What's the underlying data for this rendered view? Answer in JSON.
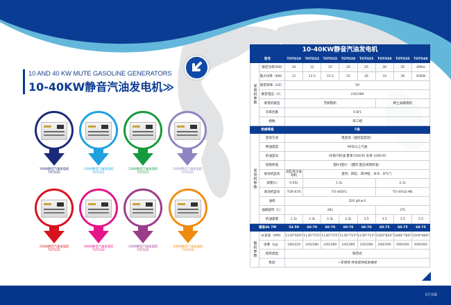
{
  "heading": {
    "english": "10 AND 40 KW MUTE GASOLINE GENERATORS",
    "chinese": "10-40KW静音汽油发电机",
    "chevron": "≫"
  },
  "badge_icon": "arrow-down-left-icon",
  "colors": {
    "brand_blue": "#0b3c93",
    "light_blue": "#5fb6d8"
  },
  "products": [
    {
      "name": "10KW静音汽油发电机",
      "model": "TOTO10",
      "color": "#1b2a78"
    },
    {
      "name": "12KW静音汽油发电机",
      "model": "TOTO12",
      "color": "#1fa0e0"
    },
    {
      "name": "15KW静音汽油发电机",
      "model": "TOTO15",
      "color": "#159a3c"
    },
    {
      "name": "20KW静音汽油发电机",
      "model": "TOTO20",
      "color": "#8d86c0"
    },
    {
      "name": "25KW静音汽油发电机",
      "model": "TOTO25",
      "color": "#d8121e"
    },
    {
      "name": "30KW静音汽油发电机",
      "model": "TOTO30",
      "color": "#e5148a"
    },
    {
      "name": "35KW静音汽油发电机",
      "model": "TOTO35",
      "color": "#9b3c8c"
    },
    {
      "name": "40KW静音汽油发电机",
      "model": "TOTO40",
      "color": "#f08a10"
    }
  ],
  "spec_table": {
    "title": "10-40KW静音汽油发电机",
    "header_label": "型号",
    "models": [
      "TOTO10",
      "TOTO12",
      "TOTO15",
      "TOTO20",
      "TOTO25",
      "TOTO30",
      "TOTO35",
      "TOTO40"
    ],
    "sections": [
      {
        "name": "发电机参数",
        "rows": [
          {
            "label": "额定功率(KW)",
            "values": [
              "10",
              "12",
              "15",
              "20",
              "25",
              "30",
              "35",
              "40Kw"
            ]
          },
          {
            "label": "最大功率（KW）",
            "values": [
              "11",
              "13.5",
              "15.5",
              "22",
              "26",
              "33",
              "36",
              "45KW"
            ]
          },
          {
            "label": "额定频率（HZ）",
            "value": "50"
          },
          {
            "label": "额定电压（V）",
            "value": "220/380"
          },
          {
            "label": "发电机类型",
            "merge": true,
            "values": [
              "无刷电机",
              "无刷电机",
              "无刷电机",
              "无刷电机",
              "无刷电机",
              "稀土永磁电机",
              "稀土永磁电机",
              "稀土永磁电机"
            ]
          },
          {
            "label": "功率因素",
            "value": "0.8/1"
          },
          {
            "label": "相数",
            "value": "单三相"
          }
        ]
      },
      {
        "bar": {
          "label": "绝缘等级",
          "value": "F级"
        },
        "name": "发动机参数",
        "rows": [
          {
            "label": "启动方式",
            "value": "电启动（遥控自启动）"
          },
          {
            "label": "燃油类型",
            "value": "90号以上汽油"
          },
          {
            "label": "机油型号",
            "value": "SF级汽机油 夏季15W/30 冬季 10W/30"
          },
          {
            "label": "排放标准",
            "value": "国IV(国V) （国四 国五排放标准）"
          },
          {
            "label": "发动机型式",
            "merge": true,
            "values": [
              "双缸风冷发动机",
              "直列、四缸、四冲程、水冷、8气门",
              "直列、四缸、四冲程、水冷、8气门",
              "直列、四缸、四冲程、水冷、8气门",
              "直列、四缸、四冲程、水冷、8气门",
              "直列、四缸、四冲程、水冷、8气门",
              "直列、四缸、四冲程、水冷、8气门",
              "直列、四缸、四冲程、水冷、8气门"
            ]
          },
          {
            "label": "排量(L)",
            "merge": true,
            "values": [
              "0.65L",
              "1.5L",
              "1.5L",
              "1.5L",
              "1.5L",
              "2.2L",
              "2.2L",
              "2.2L"
            ]
          },
          {
            "label": "发动机型号",
            "merge": true,
            "values": [
              "TOR-670",
              "TO-465F1",
              "TO-465F1",
              "TO-465F1",
              "TO-465F1",
              "TO-491Q-ME",
              "TO-491Q-ME",
              "TO-491Q-ME"
            ]
          },
          {
            "label": "油耗",
            "value": "320 g/kw.h"
          },
          {
            "label": "油箱容积（L）",
            "merge": true,
            "values": [
              "28L",
              "28L",
              "28L",
              "28L",
              "28L",
              "37L",
              "37L",
              "37L"
            ]
          },
          {
            "label": "机油容量",
            "values": [
              "1.1L",
              "3.3L",
              "3.3L",
              "3.3L",
              "3.5",
              "3.5",
              "3.5",
              "3.5"
            ]
          }
        ]
      },
      {
        "bar": {
          "label": "噪音db 7M",
          "values": [
            "54-59",
            "60-70",
            "60-70",
            "60-70",
            "60-70",
            "60-75",
            "60-75",
            "60-75"
          ]
        },
        "name": "整机参数",
        "rows": [
          {
            "label": "长宽高（MM）",
            "values": [
              "1130*650*930",
              "1130*715*650",
              "1130*715*650",
              "1130*715*650",
              "1130*715*650",
              "1300*820*800",
              "1480*780*1060",
              "1500*860*890"
            ]
          },
          {
            "label": "净重（kg）",
            "values": [
              "180/220",
              "245/280",
              "245/280",
              "245/280",
              "245/280",
              "290/290",
              "390/420",
              "400/450"
            ]
          },
          {
            "label": "结构类型",
            "value": "静音式"
          },
          {
            "label": "售后",
            "value": "一年保修 终身提供成本维修"
          }
        ]
      }
    ]
  },
  "footer": {
    "page": "07/08"
  }
}
